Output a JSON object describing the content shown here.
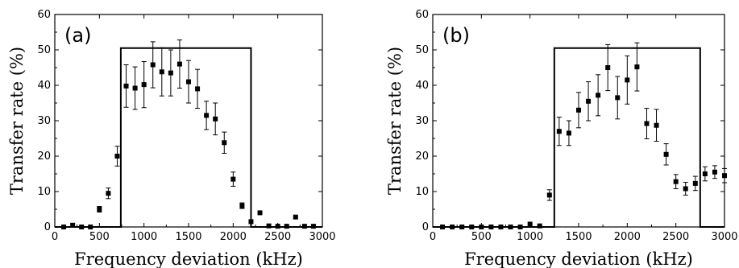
{
  "chart_data": [
    {
      "type": "scatter",
      "panel_label": "(a)",
      "xlabel": "Frequency deviation (kHz)",
      "ylabel": "Transfer rate (%)",
      "xlim": [
        0,
        3000
      ],
      "ylim": [
        0,
        60
      ],
      "xticks": [
        0,
        500,
        1000,
        1500,
        2000,
        2500,
        3000
      ],
      "yticks": [
        0,
        10,
        20,
        30,
        40,
        50,
        60
      ],
      "grid": false,
      "series": [
        {
          "kind": "points-with-error-bars",
          "x": [
            100,
            200,
            300,
            400,
            500,
            600,
            700,
            800,
            900,
            1000,
            1100,
            1200,
            1300,
            1400,
            1500,
            1600,
            1700,
            1800,
            1900,
            2000,
            2100,
            2200,
            2300,
            2400,
            2500,
            2600,
            2700,
            2800,
            2900
          ],
          "y": [
            0,
            0.5,
            0,
            0,
            5,
            9.5,
            20,
            39.8,
            39.2,
            40.2,
            45.8,
            43.8,
            43.5,
            46,
            41,
            39,
            31.5,
            30.5,
            23.8,
            13.5,
            6,
            1.5,
            4,
            0.3,
            0.2,
            0.2,
            2.8,
            0.2,
            0.2
          ],
          "yerr": [
            0,
            0,
            0,
            0,
            0.8,
            1.5,
            2.8,
            6,
            6,
            6.5,
            6.5,
            6.8,
            6.5,
            6.8,
            6,
            5.5,
            4,
            4.5,
            3,
            2,
            0.8,
            0,
            0,
            0,
            0,
            0,
            0,
            0,
            0
          ]
        },
        {
          "kind": "step-line",
          "x": [
            0,
            740,
            740,
            2200,
            2200,
            3000
          ],
          "y": [
            0,
            0,
            50.5,
            50.5,
            0,
            0
          ]
        }
      ]
    },
    {
      "type": "scatter",
      "panel_label": "(b)",
      "xlabel": "Frequency deviation (kHz)",
      "ylabel": "Transfer rate (%)",
      "xlim": [
        0,
        3000
      ],
      "ylim": [
        0,
        60
      ],
      "xticks": [
        0,
        500,
        1000,
        1500,
        2000,
        2500,
        3000
      ],
      "yticks": [
        0,
        10,
        20,
        30,
        40,
        50,
        60
      ],
      "grid": false,
      "series": [
        {
          "kind": "points-with-error-bars",
          "x": [
            100,
            200,
            300,
            400,
            500,
            600,
            700,
            800,
            900,
            1000,
            1100,
            1200,
            1300,
            1400,
            1500,
            1600,
            1700,
            1800,
            1900,
            2000,
            2100,
            2200,
            2300,
            2400,
            2500,
            2600,
            2700,
            2800,
            2900,
            3000
          ],
          "y": [
            0,
            0,
            0,
            0,
            0,
            0,
            0,
            0,
            0,
            0.8,
            0.3,
            9,
            27,
            26.5,
            33,
            35.5,
            37.2,
            45,
            36.5,
            41.5,
            45.2,
            29.2,
            28.7,
            20.5,
            12.8,
            10.8,
            12.3,
            15,
            15.5,
            14.5
          ],
          "yerr": [
            0,
            0,
            0,
            0,
            0,
            0,
            0,
            0,
            0,
            0,
            0,
            1.5,
            4,
            3.5,
            5,
            5.5,
            5.8,
            6.5,
            6,
            6.8,
            6.8,
            4.3,
            4.5,
            3,
            2,
            1.8,
            2,
            2,
            1.8,
            2
          ]
        },
        {
          "kind": "step-line",
          "x": [
            0,
            1250,
            1250,
            2750,
            2750,
            3000
          ],
          "y": [
            0,
            0,
            50.5,
            50.5,
            0,
            0
          ]
        }
      ]
    }
  ]
}
